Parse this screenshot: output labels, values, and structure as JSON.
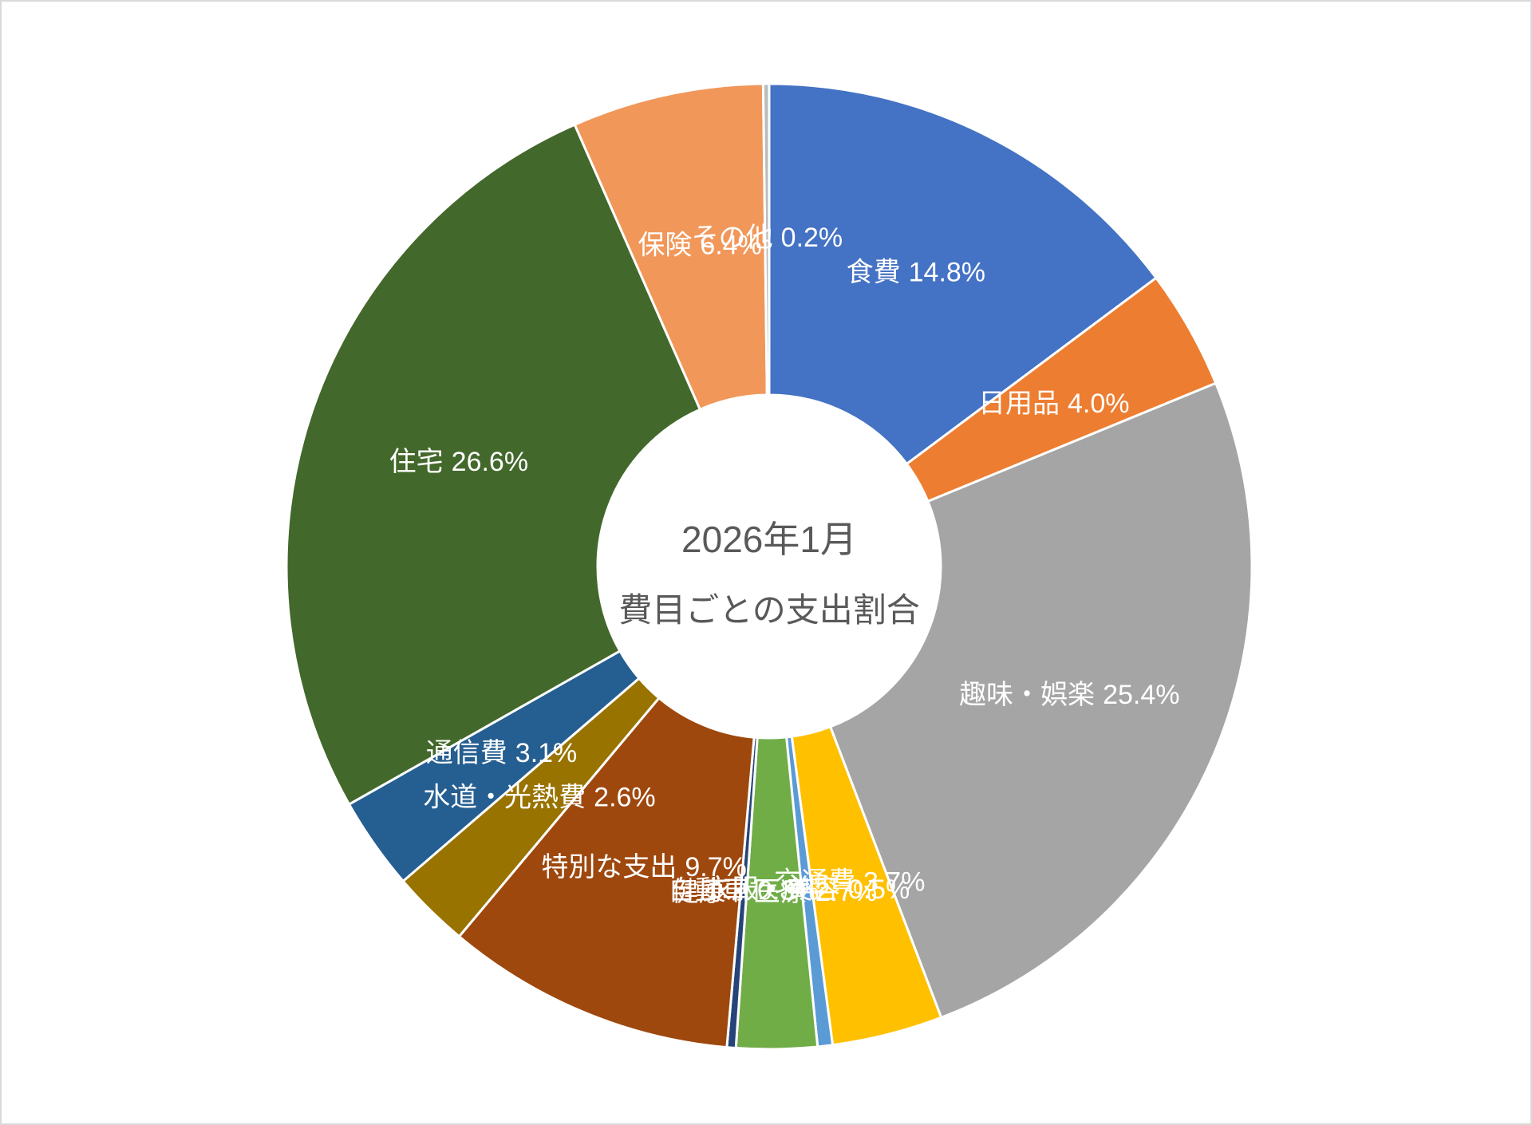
{
  "chart_data": {
    "type": "donut",
    "title": "2026年1月",
    "subtitle": "費目ごとの支出割合",
    "categories": [
      "食費",
      "日用品",
      "趣味・娯楽",
      "交通費",
      "衣服・美容",
      "健康・医療",
      "自動車",
      "特別な支出",
      "水道・光熱費",
      "通信費",
      "住宅",
      "保険",
      "その他"
    ],
    "values": [
      14.8,
      4.0,
      25.4,
      3.7,
      0.5,
      2.7,
      0.3,
      9.7,
      2.6,
      3.1,
      26.6,
      6.4,
      0.2
    ],
    "value_labels": [
      "14.8%",
      "4.0%",
      "25.4%",
      "3.7%",
      "0.5%",
      "2.7%",
      "0.3%",
      "9.7%",
      "2.6%",
      "3.1%",
      "26.6%",
      "6.4%",
      "0.2%"
    ],
    "colors": [
      "#4472c4",
      "#ed7d31",
      "#a5a5a5",
      "#ffc000",
      "#5b9bd5",
      "#70ad47",
      "#264478",
      "#9e480e",
      "#997300",
      "#255e91",
      "#43682b",
      "#f1975a",
      "#bcbcbc"
    ]
  }
}
